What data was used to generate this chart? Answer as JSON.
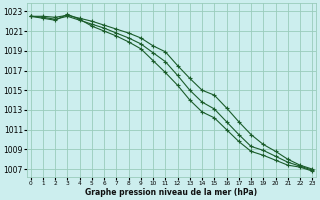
{
  "title": "Graphe pression niveau de la mer (hPa)",
  "bg_color": "#cceeee",
  "grid_color": "#99ccbb",
  "line_color": "#1a5c2a",
  "x_ticks": [
    0,
    1,
    2,
    3,
    4,
    5,
    6,
    7,
    8,
    9,
    10,
    11,
    12,
    13,
    14,
    15,
    16,
    17,
    18,
    19,
    20,
    21,
    22,
    23
  ],
  "y_ticks": [
    1007,
    1009,
    1011,
    1013,
    1015,
    1017,
    1019,
    1021,
    1023
  ],
  "ylim": [
    1006.2,
    1023.8
  ],
  "xlim": [
    -0.3,
    23.3
  ],
  "line1": [
    1022.5,
    1022.5,
    1022.4,
    1022.6,
    1022.3,
    1022.0,
    1021.6,
    1021.2,
    1020.8,
    1020.3,
    1019.5,
    1018.9,
    1017.5,
    1016.2,
    1015.0,
    1014.5,
    1013.2,
    1011.8,
    1010.5,
    1009.5,
    1008.8,
    1008.0,
    1007.4,
    1007.0
  ],
  "line2": [
    1022.5,
    1022.4,
    1022.2,
    1022.5,
    1022.1,
    1021.7,
    1021.3,
    1020.8,
    1020.3,
    1019.7,
    1018.8,
    1017.9,
    1016.5,
    1015.0,
    1013.8,
    1013.1,
    1011.8,
    1010.5,
    1009.3,
    1008.9,
    1008.3,
    1007.7,
    1007.3,
    1006.9
  ],
  "line3": [
    1022.5,
    1022.3,
    1022.1,
    1022.7,
    1022.2,
    1021.5,
    1021.0,
    1020.5,
    1019.9,
    1019.2,
    1018.0,
    1016.8,
    1015.5,
    1014.0,
    1012.8,
    1012.2,
    1011.0,
    1009.8,
    1008.8,
    1008.4,
    1007.9,
    1007.4,
    1007.2,
    1006.8
  ],
  "marker": "+",
  "ytick_fontsize": 5.5,
  "xtick_fontsize": 4.2,
  "xlabel_fontsize": 5.5,
  "linewidth": 0.8,
  "markersize": 2.5,
  "markeredgewidth": 0.8
}
